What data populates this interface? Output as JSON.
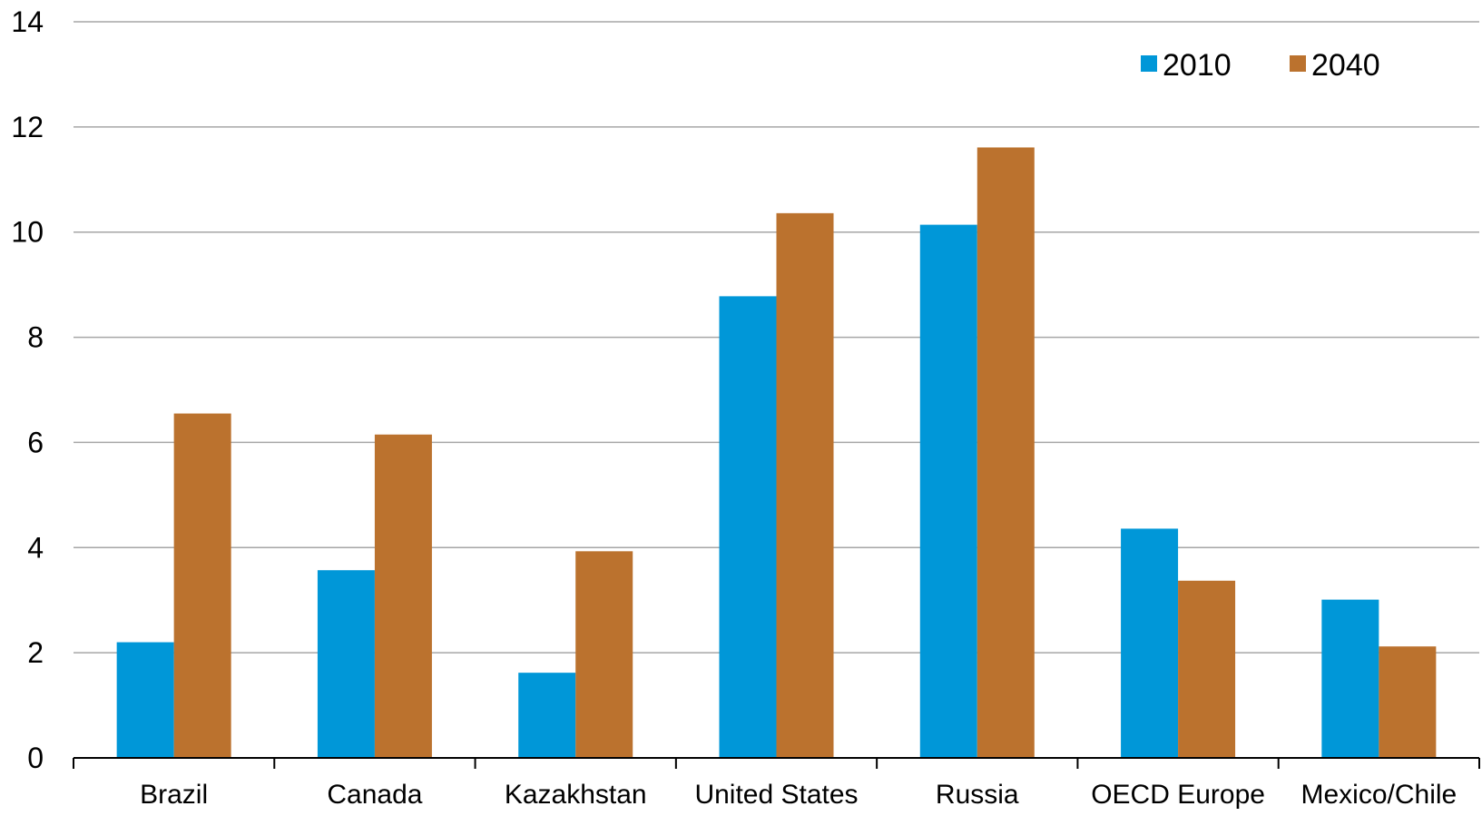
{
  "chart_data": {
    "type": "bar",
    "title": "",
    "xlabel": "",
    "ylabel": "",
    "categories": [
      "Brazil",
      "Canada",
      "Kazakhstan",
      "United States",
      "Russia",
      "OECD Europe",
      "Mexico/Chile"
    ],
    "series": [
      {
        "name": "2010",
        "color": "#0097D8",
        "values": [
          2.2,
          3.57,
          1.62,
          8.78,
          10.14,
          4.36,
          3.01
        ]
      },
      {
        "name": "2040",
        "color": "#BB722E",
        "values": [
          6.55,
          6.15,
          3.93,
          10.36,
          11.61,
          3.37,
          2.12
        ]
      }
    ],
    "ylim": [
      0,
      14
    ],
    "yticks": [
      "0",
      "2",
      "4",
      "6",
      "8",
      "10",
      "12",
      "14"
    ],
    "grid": true,
    "legend_position": "top-right"
  }
}
